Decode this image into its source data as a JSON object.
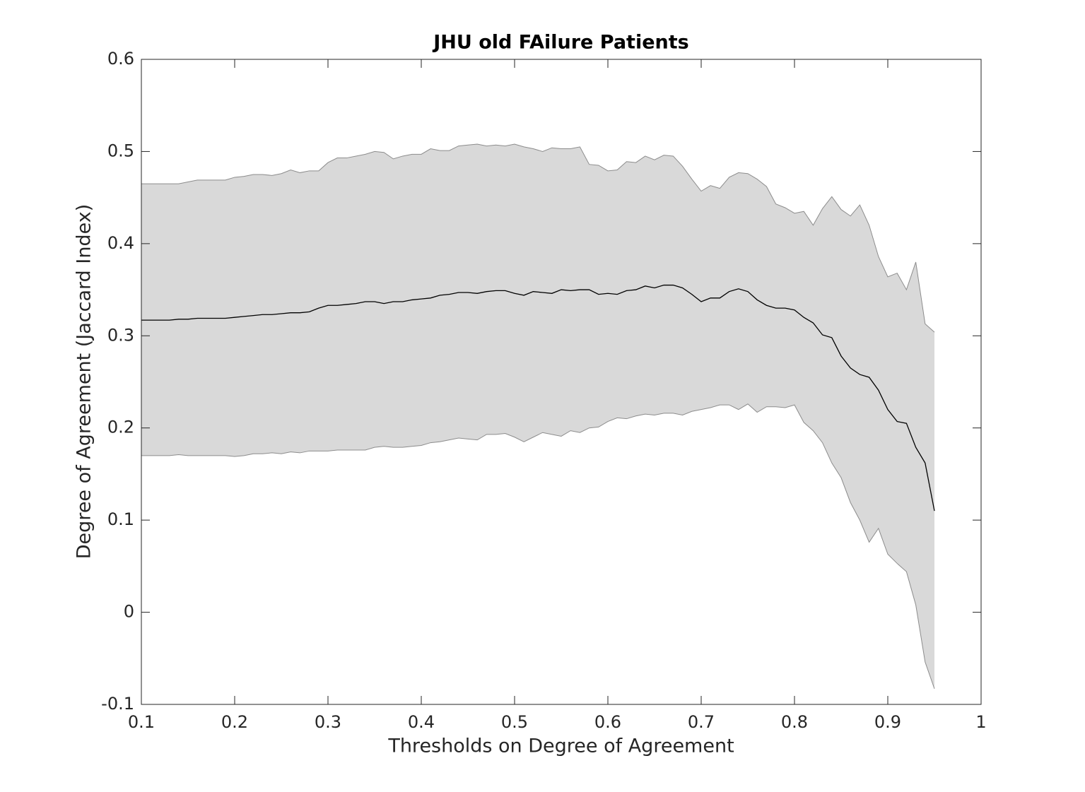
{
  "chart_data": {
    "type": "line",
    "title": "JHU old FAilure Patients",
    "x_label": "Thresholds on Degree of Agreement",
    "y_label": "Degree of Agreement (Jaccard Index)",
    "x": [
      0.1,
      0.11,
      0.12,
      0.13,
      0.14,
      0.15,
      0.16,
      0.17,
      0.18,
      0.19,
      0.2,
      0.21,
      0.22,
      0.23,
      0.24,
      0.25,
      0.26,
      0.27,
      0.28,
      0.29,
      0.3,
      0.31,
      0.32,
      0.33,
      0.34,
      0.35,
      0.36,
      0.37,
      0.38,
      0.39,
      0.4,
      0.41,
      0.42,
      0.43,
      0.44,
      0.45,
      0.46,
      0.47,
      0.48,
      0.49,
      0.5,
      0.51,
      0.52,
      0.53,
      0.54,
      0.55,
      0.56,
      0.57,
      0.58,
      0.59,
      0.6,
      0.61,
      0.62,
      0.63,
      0.64,
      0.65,
      0.66,
      0.67,
      0.68,
      0.69,
      0.7,
      0.71,
      0.72,
      0.73,
      0.74,
      0.75,
      0.76,
      0.77,
      0.78,
      0.79,
      0.8,
      0.81,
      0.82,
      0.83,
      0.84,
      0.85,
      0.86,
      0.87,
      0.88,
      0.89,
      0.9,
      0.91,
      0.92,
      0.93,
      0.94,
      0.95
    ],
    "series": [
      {
        "color": "#000000",
        "values": [
          0.317,
          0.317,
          0.317,
          0.317,
          0.318,
          0.318,
          0.319,
          0.319,
          0.319,
          0.319,
          0.32,
          0.321,
          0.322,
          0.323,
          0.323,
          0.324,
          0.325,
          0.325,
          0.326,
          0.33,
          0.333,
          0.333,
          0.334,
          0.335,
          0.337,
          0.337,
          0.335,
          0.337,
          0.337,
          0.339,
          0.34,
          0.341,
          0.344,
          0.345,
          0.347,
          0.347,
          0.346,
          0.348,
          0.349,
          0.349,
          0.346,
          0.344,
          0.348,
          0.347,
          0.346,
          0.35,
          0.349,
          0.35,
          0.35,
          0.345,
          0.346,
          0.345,
          0.349,
          0.35,
          0.354,
          0.352,
          0.355,
          0.355,
          0.352,
          0.345,
          0.337,
          0.341,
          0.341,
          0.348,
          0.351,
          0.348,
          0.339,
          0.333,
          0.33,
          0.33,
          0.328,
          0.32,
          0.314,
          0.301,
          0.298,
          0.278,
          0.265,
          0.258,
          0.255,
          0.241,
          0.22,
          0.207,
          0.205,
          0.179,
          0.162,
          0.11
        ]
      }
    ],
    "band": {
      "color": "#d9d9d9",
      "edge_color": "#8c8c8c",
      "upper": [
        0.465,
        0.465,
        0.465,
        0.465,
        0.465,
        0.467,
        0.469,
        0.469,
        0.469,
        0.469,
        0.472,
        0.473,
        0.475,
        0.475,
        0.474,
        0.476,
        0.48,
        0.477,
        0.479,
        0.479,
        0.488,
        0.493,
        0.493,
        0.495,
        0.497,
        0.5,
        0.499,
        0.492,
        0.495,
        0.497,
        0.497,
        0.503,
        0.501,
        0.501,
        0.506,
        0.507,
        0.508,
        0.506,
        0.507,
        0.506,
        0.508,
        0.505,
        0.503,
        0.5,
        0.504,
        0.503,
        0.503,
        0.505,
        0.486,
        0.485,
        0.479,
        0.48,
        0.489,
        0.488,
        0.495,
        0.491,
        0.496,
        0.495,
        0.484,
        0.47,
        0.457,
        0.463,
        0.46,
        0.472,
        0.477,
        0.476,
        0.47,
        0.462,
        0.443,
        0.439,
        0.433,
        0.435,
        0.42,
        0.438,
        0.451,
        0.437,
        0.43,
        0.442,
        0.42,
        0.386,
        0.364,
        0.368,
        0.35,
        0.38,
        0.313,
        0.304
      ],
      "lower": [
        0.17,
        0.17,
        0.17,
        0.17,
        0.171,
        0.17,
        0.17,
        0.17,
        0.17,
        0.17,
        0.169,
        0.17,
        0.172,
        0.172,
        0.173,
        0.172,
        0.174,
        0.173,
        0.175,
        0.175,
        0.175,
        0.176,
        0.176,
        0.176,
        0.176,
        0.179,
        0.18,
        0.179,
        0.179,
        0.18,
        0.181,
        0.184,
        0.185,
        0.187,
        0.189,
        0.188,
        0.187,
        0.193,
        0.193,
        0.194,
        0.19,
        0.185,
        0.19,
        0.195,
        0.193,
        0.191,
        0.197,
        0.195,
        0.2,
        0.201,
        0.207,
        0.211,
        0.21,
        0.213,
        0.215,
        0.214,
        0.216,
        0.216,
        0.214,
        0.218,
        0.22,
        0.222,
        0.225,
        0.225,
        0.22,
        0.226,
        0.217,
        0.223,
        0.223,
        0.222,
        0.225,
        0.206,
        0.197,
        0.184,
        0.162,
        0.146,
        0.119,
        0.1,
        0.076,
        0.091,
        0.063,
        0.053,
        0.044,
        0.008,
        -0.054,
        -0.083
      ]
    },
    "xlim": [
      0.1,
      1
    ],
    "xticks": [
      0.1,
      0.2,
      0.3,
      0.4,
      0.5,
      0.6,
      0.7,
      0.8,
      0.9,
      1
    ],
    "ylim": [
      -0.1,
      0.6
    ],
    "yticks": [
      -0.1,
      0,
      0.1,
      0.2,
      0.3,
      0.4,
      0.5,
      0.6
    ],
    "grid": false
  }
}
